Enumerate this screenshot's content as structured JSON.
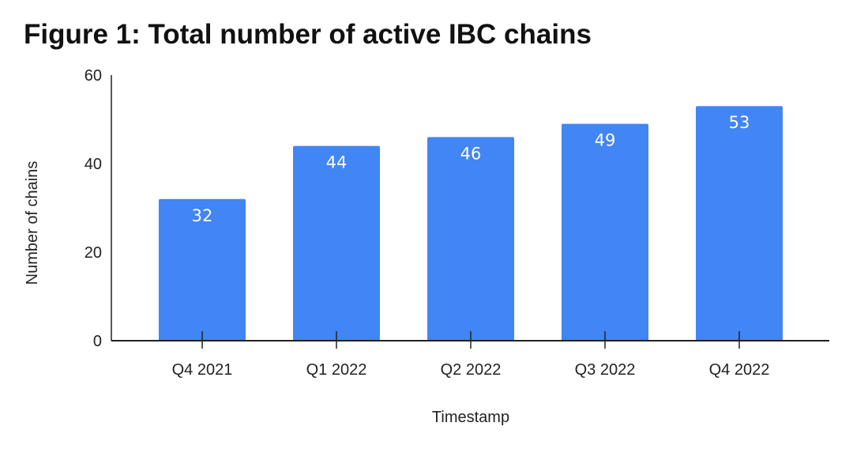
{
  "title": "Figure 1: Total number of active IBC chains",
  "chart_data": {
    "type": "bar",
    "title": "Figure 1: Total number of active IBC chains",
    "xlabel": "Timestamp",
    "ylabel": "Number of chains",
    "categories": [
      "Q4 2021",
      "Q1 2022",
      "Q2 2022",
      "Q3 2022",
      "Q4 2022"
    ],
    "values": [
      32,
      44,
      46,
      49,
      53
    ],
    "ylim": [
      0,
      60
    ],
    "yticks": [
      0,
      20,
      40,
      60
    ],
    "grid": false,
    "legend": "none",
    "bar_color": "#4285f4",
    "data_labels": true
  }
}
